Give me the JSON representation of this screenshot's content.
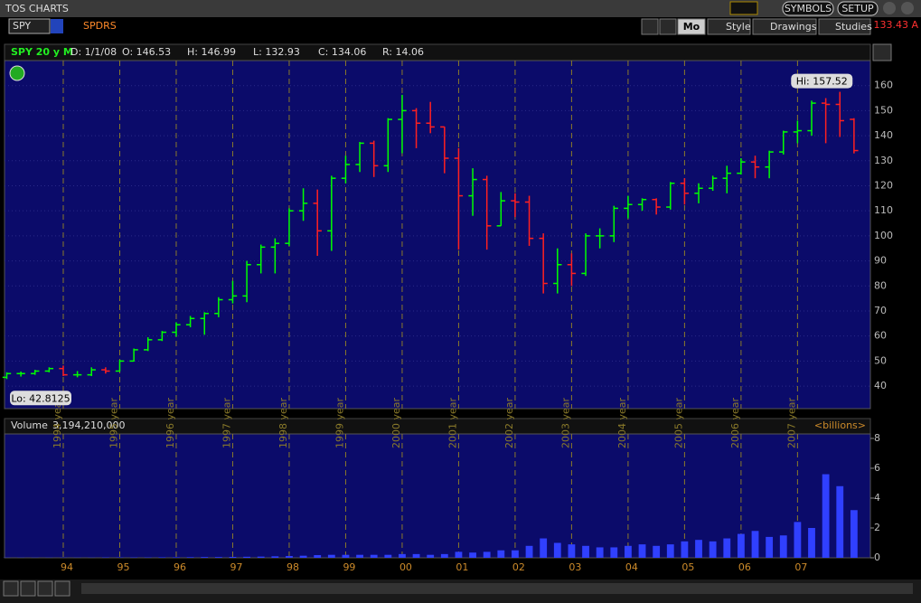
{
  "window": {
    "title": "TOS CHARTS",
    "symbols": "SYMBOLS",
    "setup": "SETUP",
    "last_price": "133.43 A"
  },
  "toolbar": {
    "symbol": "SPY",
    "description": "SPDRS",
    "period": "Mo",
    "style": "Style",
    "drawings": "Drawings",
    "studies": "Studies"
  },
  "info": {
    "study": "SPY 20 y M",
    "date": "D: 1/1/08",
    "open": "O: 146.53",
    "high": "H: 146.99",
    "low": "L: 132.93",
    "close": "C: 134.06",
    "range": "R: 14.06"
  },
  "chart_data": [
    {
      "type": "ohlc",
      "up_color": "#00ff00",
      "down_color": "#ff2020",
      "grid": true,
      "hi_label": "Hi: 157.52",
      "lo_label": "Lo: 42.8125",
      "x": [
        1993,
        1993.25,
        1993.5,
        1993.75,
        1994,
        1994.25,
        1994.5,
        1994.75,
        1995,
        1995.25,
        1995.5,
        1995.75,
        1996,
        1996.25,
        1996.5,
        1996.75,
        1997,
        1997.25,
        1997.5,
        1997.75,
        1998,
        1998.25,
        1998.5,
        1998.75,
        1999,
        1999.25,
        1999.5,
        1999.75,
        2000,
        2000.25,
        2000.5,
        2000.75,
        2001,
        2001.25,
        2001.5,
        2001.75,
        2002,
        2002.25,
        2002.5,
        2002.75,
        2003,
        2003.25,
        2003.5,
        2003.75,
        2004,
        2004.25,
        2004.5,
        2004.75,
        2005,
        2005.25,
        2005.5,
        2005.75,
        2006,
        2006.25,
        2006.5,
        2006.75,
        2007,
        2007.25,
        2007.5,
        2007.75,
        2008
      ],
      "open": [
        43.5,
        45,
        45,
        46,
        47,
        44.5,
        44.5,
        46.5,
        46,
        50,
        54.5,
        58.5,
        61.5,
        64.5,
        67,
        69,
        74.5,
        76,
        88.5,
        95.5,
        97,
        110,
        113,
        102,
        123,
        128.5,
        137,
        128,
        146.5,
        150,
        145,
        143.5,
        131,
        116,
        122.5,
        104,
        114,
        113.5,
        99,
        81,
        88.5,
        85,
        100,
        100,
        111,
        112.5,
        114.5,
        111.5,
        121,
        117,
        119,
        123,
        125,
        129.5,
        127.5,
        133.5,
        141.5,
        142,
        153,
        152.5,
        146.53
      ],
      "high": [
        45.5,
        45.8,
        46.5,
        47.5,
        48.2,
        46,
        47.5,
        47.5,
        50.5,
        55,
        59.5,
        62,
        65.5,
        68,
        69.5,
        75.5,
        82,
        90,
        96.5,
        99,
        111,
        119,
        118.5,
        124,
        132,
        137.5,
        138,
        147,
        156.3,
        151,
        153.5,
        143.6,
        135,
        127,
        124,
        117.5,
        117,
        116,
        101,
        95,
        93,
        101,
        103,
        112,
        116,
        115,
        115,
        121.5,
        123,
        121,
        124,
        128,
        131,
        132,
        134,
        142,
        146,
        154,
        155,
        157.52,
        146.99
      ],
      "low": [
        42.81,
        43.8,
        44.5,
        45.5,
        44,
        43.5,
        44,
        45,
        45.8,
        49.8,
        54,
        58,
        59.8,
        63.5,
        60.5,
        67.5,
        73,
        73.5,
        85,
        85,
        96,
        106,
        92,
        94,
        121,
        125.5,
        123.5,
        125.5,
        133,
        135,
        141,
        125,
        94.5,
        108,
        94.5,
        104,
        107.5,
        96,
        77,
        77,
        80,
        84,
        95,
        97.5,
        107,
        110,
        108.5,
        110.5,
        112.5,
        113,
        118,
        117,
        124.5,
        123,
        123,
        132.5,
        137,
        140,
        137,
        139.5,
        132.93
      ],
      "close": [
        45,
        45,
        46,
        47,
        44.5,
        44.5,
        46.5,
        46,
        50,
        54.5,
        58.5,
        61.5,
        64.5,
        67,
        69,
        74.5,
        76,
        88.5,
        95.5,
        97,
        110,
        113,
        102,
        123,
        128.5,
        137,
        128,
        146.5,
        150,
        145,
        143.5,
        131,
        116,
        122.5,
        104,
        114,
        113.5,
        99,
        81,
        88.5,
        85,
        100,
        100,
        111,
        112.5,
        114.5,
        111.5,
        121,
        117,
        119,
        123,
        125,
        129.5,
        127.5,
        133.5,
        141.5,
        142,
        153,
        152.5,
        146,
        134.06
      ],
      "xlim": [
        1992.96,
        2008.29
      ],
      "ylim": [
        31,
        170
      ],
      "yticks": [
        40,
        50,
        60,
        70,
        80,
        90,
        100,
        110,
        120,
        130,
        140,
        150,
        160
      ],
      "xticks": [
        {
          "value": 1994,
          "label": "1994 year"
        },
        {
          "value": 1995,
          "label": "1995 year"
        },
        {
          "value": 1996,
          "label": "1996 year"
        },
        {
          "value": 1997,
          "label": "1997 year"
        },
        {
          "value": 1998,
          "label": "1998 year"
        },
        {
          "value": 1999,
          "label": "1999 year"
        },
        {
          "value": 2000,
          "label": "2000 year"
        },
        {
          "value": 2001,
          "label": "2001 year"
        },
        {
          "value": 2002,
          "label": "2002 year"
        },
        {
          "value": 2003,
          "label": "2003 year"
        },
        {
          "value": 2004,
          "label": "2004 year"
        },
        {
          "value": 2005,
          "label": "2005 year"
        },
        {
          "value": 2006,
          "label": "2006 year"
        },
        {
          "value": 2007,
          "label": "2007 year"
        }
      ]
    },
    {
      "type": "bar",
      "title": "Volume",
      "unit_label": "<billions>",
      "color": "#3040ff",
      "last_volume": {
        "value": 3.19421,
        "label": "3,194,210,000"
      },
      "x": [
        1993,
        1993.25,
        1993.5,
        1993.75,
        1994,
        1994.25,
        1994.5,
        1994.75,
        1995,
        1995.25,
        1995.5,
        1995.75,
        1996,
        1996.25,
        1996.5,
        1996.75,
        1997,
        1997.25,
        1997.5,
        1997.75,
        1998,
        1998.25,
        1998.5,
        1998.75,
        1999,
        1999.25,
        1999.5,
        1999.75,
        2000,
        2000.25,
        2000.5,
        2000.75,
        2001,
        2001.25,
        2001.5,
        2001.75,
        2002,
        2002.25,
        2002.5,
        2002.75,
        2003,
        2003.25,
        2003.5,
        2003.75,
        2004,
        2004.25,
        2004.5,
        2004.75,
        2005,
        2005.25,
        2005.5,
        2005.75,
        2006,
        2006.25,
        2006.5,
        2006.75,
        2007,
        2007.25,
        2007.5,
        2007.75,
        2008
      ],
      "values": [
        0.01,
        0.01,
        0.01,
        0.01,
        0.01,
        0.01,
        0.01,
        0.02,
        0.02,
        0.02,
        0.02,
        0.03,
        0.03,
        0.04,
        0.05,
        0.05,
        0.06,
        0.07,
        0.08,
        0.1,
        0.12,
        0.14,
        0.18,
        0.2,
        0.2,
        0.2,
        0.2,
        0.2,
        0.25,
        0.25,
        0.2,
        0.25,
        0.4,
        0.35,
        0.4,
        0.5,
        0.5,
        0.8,
        1.3,
        1.0,
        0.9,
        0.8,
        0.7,
        0.7,
        0.8,
        0.9,
        0.8,
        0.9,
        1.1,
        1.2,
        1.1,
        1.3,
        1.6,
        1.8,
        1.4,
        1.5,
        2.4,
        2.0,
        5.6,
        4.8,
        3.19421
      ],
      "xlim": [
        1992.96,
        2008.29
      ],
      "ylim": [
        0,
        8.3
      ],
      "yticks": [
        0,
        2,
        4,
        6,
        8
      ],
      "xticks": [
        {
          "value": 1994,
          "label": "94"
        },
        {
          "value": 1995,
          "label": "95"
        },
        {
          "value": 1996,
          "label": "96"
        },
        {
          "value": 1997,
          "label": "97"
        },
        {
          "value": 1998,
          "label": "98"
        },
        {
          "value": 1999,
          "label": "99"
        },
        {
          "value": 2000,
          "label": "00"
        },
        {
          "value": 2001,
          "label": "01"
        },
        {
          "value": 2002,
          "label": "02"
        },
        {
          "value": 2003,
          "label": "03"
        },
        {
          "value": 2004,
          "label": "04"
        },
        {
          "value": 2005,
          "label": "05"
        },
        {
          "value": 2006,
          "label": "06"
        },
        {
          "value": 2007,
          "label": "07"
        }
      ]
    }
  ]
}
